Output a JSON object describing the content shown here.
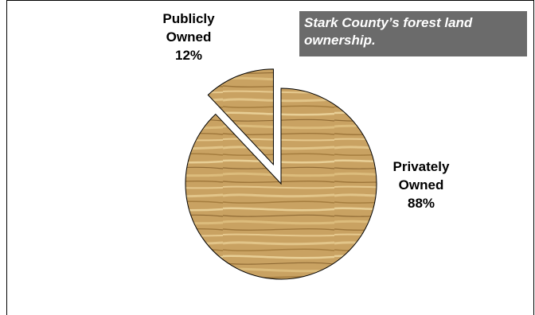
{
  "chart_data": {
    "type": "pie",
    "title": "Stark County’s forest land ownership.",
    "slices": [
      {
        "name": "Publicly Owned",
        "label_line1": "Publicly",
        "label_line2": "Owned",
        "value": 12,
        "value_label": "12%",
        "exploded": true
      },
      {
        "name": "Privately Owned",
        "label_line1": "Privately",
        "label_line2": "Owned",
        "value": 88,
        "value_label": "88%",
        "exploded": false
      }
    ],
    "start_angle_deg": 0,
    "direction": "counterclockwise",
    "fill": "wood-texture",
    "colors": {
      "wood_base": "#c9a262",
      "wood_light": "#e2c589",
      "wood_dark": "#8f6a34",
      "outline": "#000000",
      "title_bg": "#6b6b6b",
      "title_text": "#ffffff"
    }
  }
}
